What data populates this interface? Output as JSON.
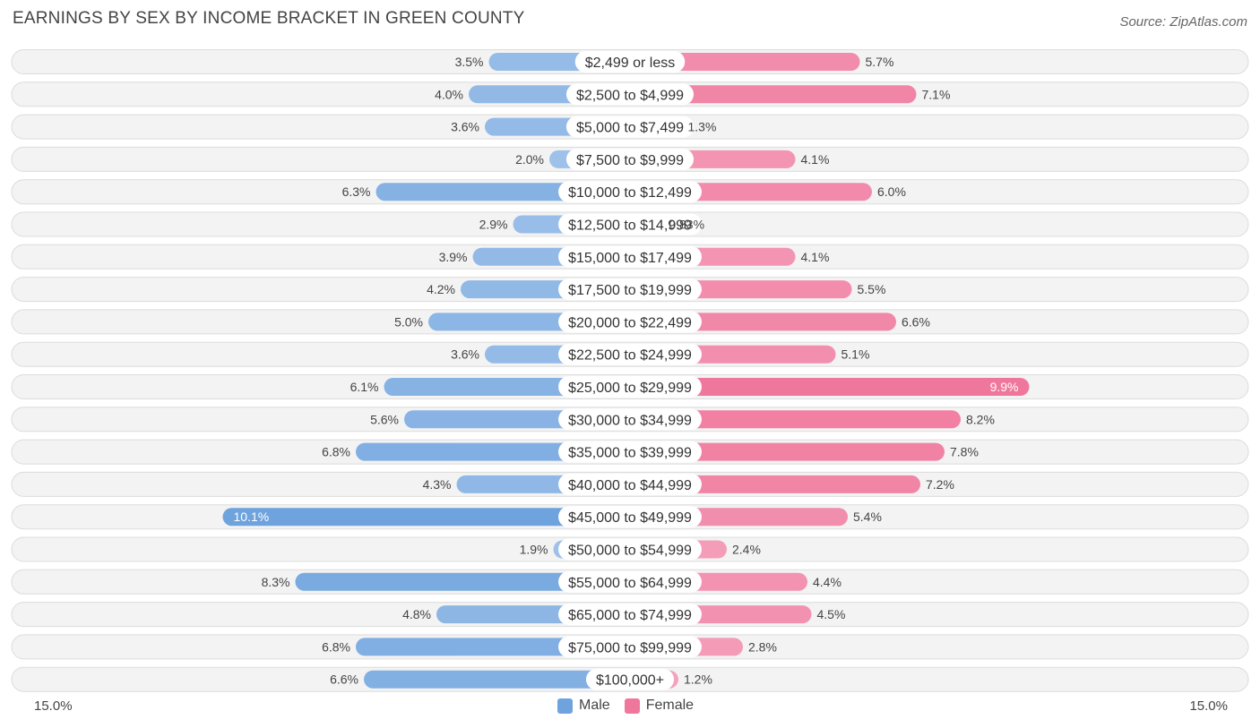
{
  "header": {
    "title": "EARNINGS BY SEX BY INCOME BRACKET IN GREEN COUNTY",
    "source": "Source: ZipAtlas.com"
  },
  "colors": {
    "male": "#6fa3de",
    "male_light": "#a9c8ec",
    "female": "#f0779c",
    "female_light": "#f5a9c1"
  },
  "legend": {
    "male": "Male",
    "female": "Female"
  },
  "axis": {
    "left_label": "15.0%",
    "right_label": "15.0%"
  },
  "chart_data": {
    "type": "bar",
    "orientation": "horizontal-diverging",
    "title": "EARNINGS BY SEX BY INCOME BRACKET IN GREEN COUNTY",
    "xlim": [
      -15.0,
      15.0
    ],
    "unit": "%",
    "categories": [
      "$2,499 or less",
      "$2,500 to $4,999",
      "$5,000 to $7,499",
      "$7,500 to $9,999",
      "$10,000 to $12,499",
      "$12,500 to $14,999",
      "$15,000 to $17,499",
      "$17,500 to $19,999",
      "$20,000 to $22,499",
      "$22,500 to $24,999",
      "$25,000 to $29,999",
      "$30,000 to $34,999",
      "$35,000 to $39,999",
      "$40,000 to $44,999",
      "$45,000 to $49,999",
      "$50,000 to $54,999",
      "$55,000 to $64,999",
      "$65,000 to $74,999",
      "$75,000 to $99,999",
      "$100,000+"
    ],
    "series": [
      {
        "name": "Male",
        "values": [
          3.5,
          4.0,
          3.6,
          2.0,
          6.3,
          2.9,
          3.9,
          4.2,
          5.0,
          3.6,
          6.1,
          5.6,
          6.8,
          4.3,
          10.1,
          1.9,
          8.3,
          4.8,
          6.8,
          6.6
        ],
        "labels": [
          "3.5%",
          "4.0%",
          "3.6%",
          "2.0%",
          "6.3%",
          "2.9%",
          "3.9%",
          "4.2%",
          "5.0%",
          "3.6%",
          "6.1%",
          "5.6%",
          "6.8%",
          "4.3%",
          "10.1%",
          "1.9%",
          "8.3%",
          "4.8%",
          "6.8%",
          "6.6%"
        ]
      },
      {
        "name": "Female",
        "values": [
          5.7,
          7.1,
          1.3,
          4.1,
          6.0,
          0.83,
          4.1,
          5.5,
          6.6,
          5.1,
          9.9,
          8.2,
          7.8,
          7.2,
          5.4,
          2.4,
          4.4,
          4.5,
          2.8,
          1.2
        ],
        "labels": [
          "5.7%",
          "7.1%",
          "1.3%",
          "4.1%",
          "6.0%",
          "0.83%",
          "4.1%",
          "5.5%",
          "6.6%",
          "5.1%",
          "9.9%",
          "8.2%",
          "7.8%",
          "7.2%",
          "5.4%",
          "2.4%",
          "4.4%",
          "4.5%",
          "2.8%",
          "1.2%"
        ]
      }
    ]
  }
}
